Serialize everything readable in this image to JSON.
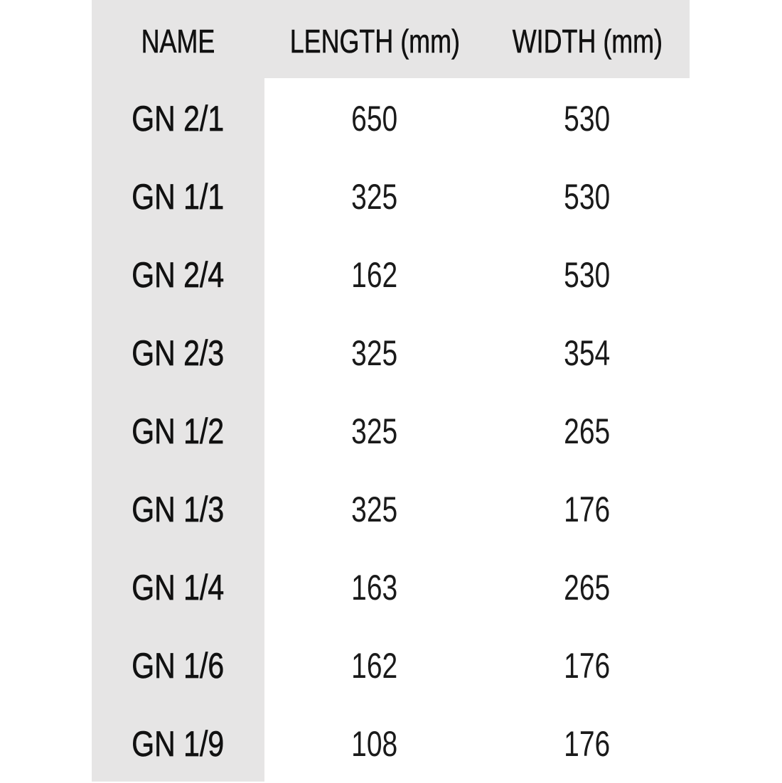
{
  "colors": {
    "header_bg": "#e6e5e5",
    "body_bg": "#ffffff",
    "text": "#111111"
  },
  "table": {
    "headers": [
      "NAME",
      "LENGTH (mm)",
      "WIDTH (mm)"
    ],
    "rows": [
      [
        "GN 2/1",
        "650",
        "530"
      ],
      [
        "GN 1/1",
        "325",
        "530"
      ],
      [
        "GN 2/4",
        "162",
        "530"
      ],
      [
        "GN 2/3",
        "325",
        "354"
      ],
      [
        "GN 1/2",
        "325",
        "265"
      ],
      [
        "GN 1/3",
        "325",
        "176"
      ],
      [
        "GN 1/4",
        "163",
        "265"
      ],
      [
        "GN 1/6",
        "162",
        "176"
      ],
      [
        "GN 1/9",
        "108",
        "176"
      ]
    ]
  }
}
